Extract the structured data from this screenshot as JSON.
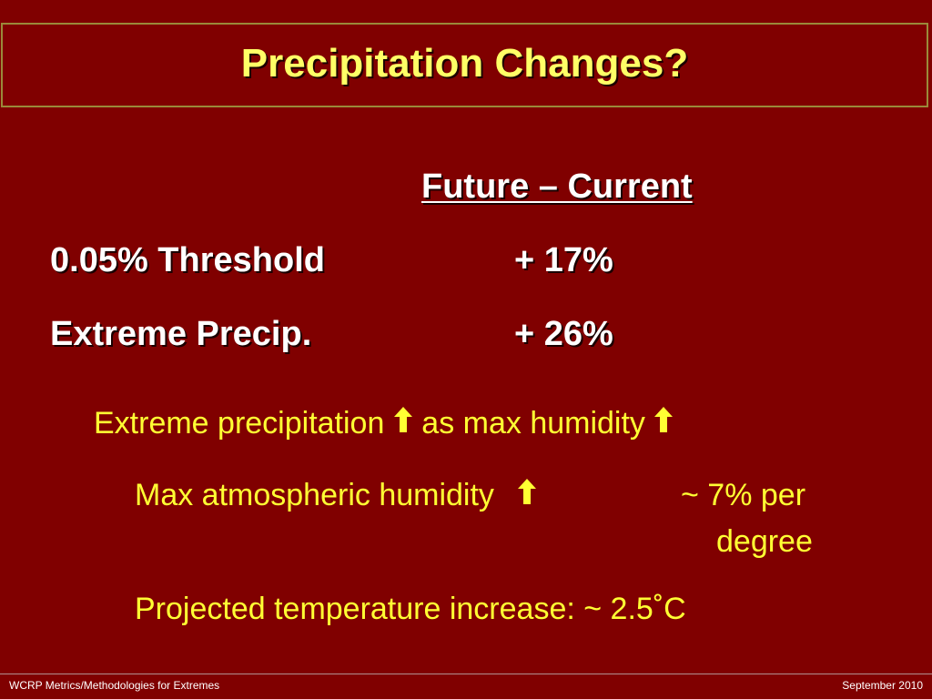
{
  "slide": {
    "title": "Precipitation Changes?",
    "table": {
      "column_header": "Future – Current",
      "rows": [
        {
          "label": "0.05% Threshold",
          "value": "+ 17%"
        },
        {
          "label": "Extreme Precip.",
          "value": "+ 26%"
        }
      ]
    },
    "notes": {
      "line1_part1": "Extreme precipitation",
      "line1_part2": "as max humidity",
      "line2_part1": "Max atmospheric humidity",
      "line2_part2": "~ 7% per",
      "line2_part3": "degree",
      "line3": "Projected temperature increase:  ~ 2.5˚C"
    },
    "icons": {
      "up_arrow": "up-arrow-icon"
    },
    "colors": {
      "background": "#800000",
      "title": "#ffff66",
      "body_text": "#ffffff",
      "notes_text": "#ffff33"
    }
  },
  "footer": {
    "left": "WCRP Metrics/Methodologies for Extremes",
    "right": "September 2010"
  }
}
